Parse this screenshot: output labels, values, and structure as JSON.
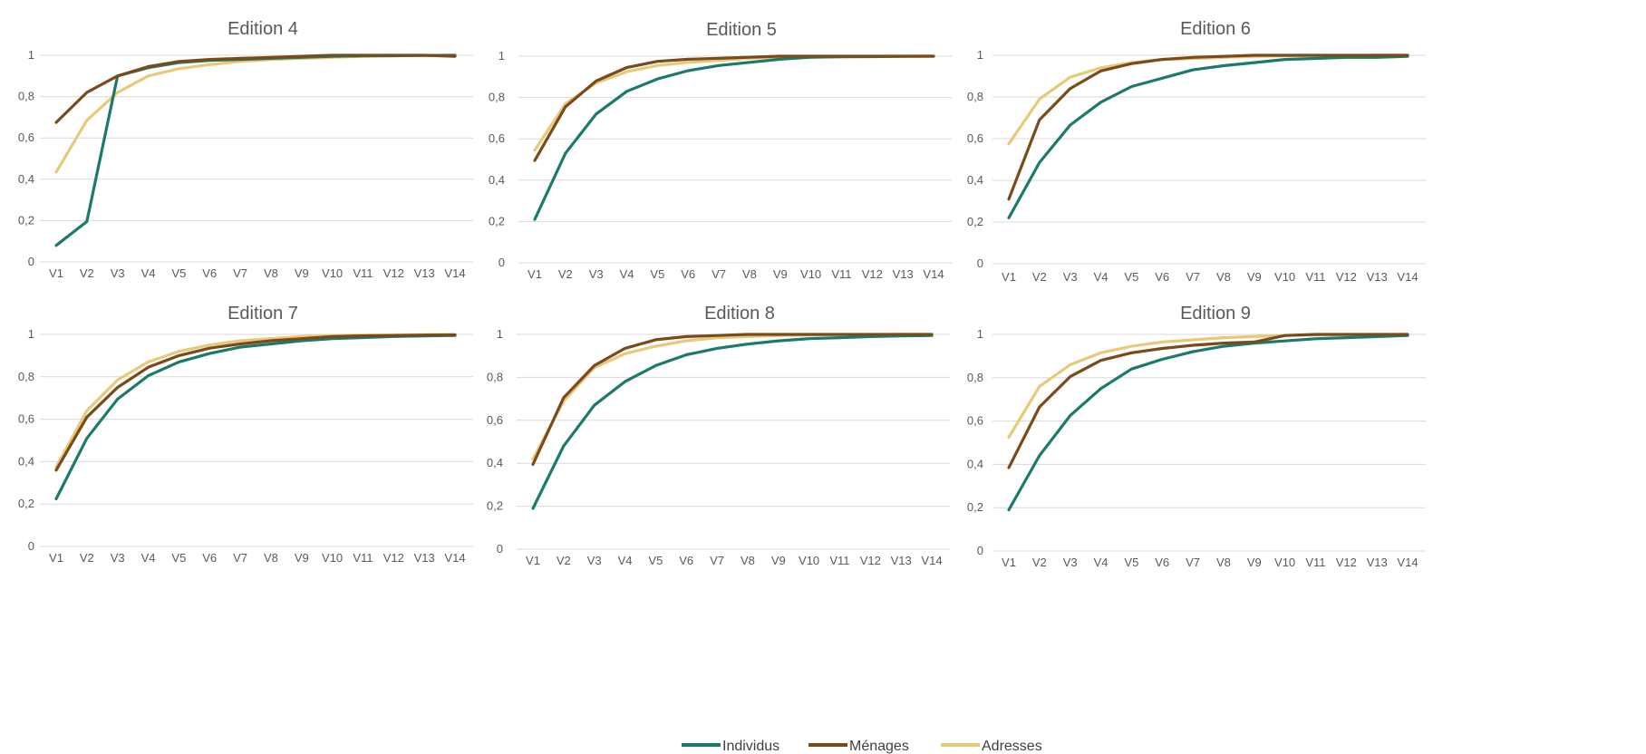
{
  "chart_data": [
    {
      "type": "line",
      "title": "Edition 4",
      "categories": [
        "V1",
        "V2",
        "V3",
        "V4",
        "V5",
        "V6",
        "V7",
        "V8",
        "V9",
        "V10",
        "V11",
        "V12",
        "V13",
        "V14"
      ],
      "yticks": [
        "0",
        "0,2",
        "0,4",
        "0,6",
        "0,8",
        "1"
      ],
      "ylim": [
        0,
        1
      ],
      "grid": true,
      "series": [
        {
          "name": "Individus",
          "values": [
            0.08,
            0.195,
            0.9,
            0.94,
            0.965,
            0.975,
            0.98,
            0.985,
            0.99,
            0.995,
            0.997,
            0.998,
            0.999,
            1.0
          ]
        },
        {
          "name": "Ménages",
          "values": [
            0.675,
            0.82,
            0.9,
            0.945,
            0.97,
            0.98,
            0.985,
            0.99,
            0.995,
            1.0,
            1.0,
            1.0,
            1.0,
            0.995
          ]
        },
        {
          "name": "Adresses",
          "values": [
            0.435,
            0.685,
            0.82,
            0.9,
            0.935,
            0.955,
            0.97,
            0.98,
            0.985,
            0.99,
            0.995,
            0.998,
            0.999,
            1.0
          ]
        }
      ]
    },
    {
      "type": "line",
      "title": "Edition 5",
      "categories": [
        "V1",
        "V2",
        "V3",
        "V4",
        "V5",
        "V6",
        "V7",
        "V8",
        "V9",
        "V10",
        "V11",
        "V12",
        "V13",
        "V14"
      ],
      "yticks": [
        "0",
        "0,2",
        "0,4",
        "0,6",
        "0,8",
        "1"
      ],
      "ylim": [
        0,
        1
      ],
      "grid": true,
      "series": [
        {
          "name": "Individus",
          "values": [
            0.21,
            0.53,
            0.72,
            0.83,
            0.89,
            0.93,
            0.955,
            0.97,
            0.985,
            0.995,
            0.997,
            0.998,
            0.999,
            1.0
          ]
        },
        {
          "name": "Ménages",
          "values": [
            0.495,
            0.755,
            0.88,
            0.945,
            0.975,
            0.985,
            0.99,
            0.995,
            1.0,
            1.0,
            1.0,
            1.0,
            1.0,
            1.0
          ]
        },
        {
          "name": "Adresses",
          "values": [
            0.545,
            0.77,
            0.87,
            0.925,
            0.955,
            0.97,
            0.98,
            0.99,
            0.995,
            0.997,
            0.998,
            0.999,
            1.0,
            1.0
          ]
        }
      ]
    },
    {
      "type": "line",
      "title": "Edition 6",
      "categories": [
        "V1",
        "V2",
        "V3",
        "V4",
        "V5",
        "V6",
        "V7",
        "V8",
        "V9",
        "V10",
        "V11",
        "V12",
        "V13",
        "V14"
      ],
      "yticks": [
        "0",
        "0,2",
        "0,4",
        "0,6",
        "0,8",
        "1"
      ],
      "ylim": [
        0,
        1
      ],
      "grid": true,
      "series": [
        {
          "name": "Individus",
          "values": [
            0.22,
            0.485,
            0.665,
            0.775,
            0.85,
            0.89,
            0.93,
            0.95,
            0.965,
            0.98,
            0.985,
            0.99,
            0.99,
            0.995
          ]
        },
        {
          "name": "Ménages",
          "values": [
            0.31,
            0.69,
            0.84,
            0.925,
            0.96,
            0.98,
            0.99,
            0.995,
            1.0,
            1.0,
            1.0,
            1.0,
            1.0,
            1.0
          ]
        },
        {
          "name": "Adresses",
          "values": [
            0.575,
            0.79,
            0.895,
            0.94,
            0.965,
            0.98,
            0.985,
            0.99,
            0.995,
            0.997,
            0.998,
            0.999,
            1.0,
            1.0
          ]
        }
      ]
    },
    {
      "type": "line",
      "title": "Edition 7",
      "categories": [
        "V1",
        "V2",
        "V3",
        "V4",
        "V5",
        "V6",
        "V7",
        "V8",
        "V9",
        "V10",
        "V11",
        "V12",
        "V13",
        "V14"
      ],
      "yticks": [
        "0",
        "0,2",
        "0,4",
        "0,6",
        "0,8",
        "1"
      ],
      "ylim": [
        0,
        1
      ],
      "grid": true,
      "series": [
        {
          "name": "Individus",
          "values": [
            0.225,
            0.51,
            0.695,
            0.805,
            0.87,
            0.91,
            0.94,
            0.955,
            0.97,
            0.98,
            0.985,
            0.99,
            0.993,
            0.995
          ]
        },
        {
          "name": "Ménages",
          "values": [
            0.36,
            0.61,
            0.75,
            0.845,
            0.9,
            0.935,
            0.955,
            0.97,
            0.98,
            0.99,
            0.993,
            0.995,
            0.997,
            0.998
          ]
        },
        {
          "name": "Adresses",
          "values": [
            0.375,
            0.64,
            0.785,
            0.87,
            0.92,
            0.95,
            0.97,
            0.98,
            0.99,
            0.995,
            0.997,
            0.998,
            0.999,
            1.0
          ]
        }
      ]
    },
    {
      "type": "line",
      "title": "Edition 8",
      "categories": [
        "V1",
        "V2",
        "V3",
        "V4",
        "V5",
        "V6",
        "V7",
        "V8",
        "V9",
        "V10",
        "V11",
        "V12",
        "V13",
        "V14"
      ],
      "yticks": [
        "0",
        "0,2",
        "0,4",
        "0,6",
        "0,8",
        "1"
      ],
      "ylim": [
        0,
        1
      ],
      "grid": true,
      "series": [
        {
          "name": "Individus",
          "values": [
            0.19,
            0.48,
            0.67,
            0.78,
            0.855,
            0.905,
            0.935,
            0.955,
            0.97,
            0.98,
            0.985,
            0.99,
            0.993,
            0.995
          ]
        },
        {
          "name": "Ménages",
          "values": [
            0.395,
            0.705,
            0.855,
            0.935,
            0.975,
            0.99,
            0.995,
            1.0,
            1.0,
            1.0,
            1.0,
            1.0,
            1.0,
            1.0
          ]
        },
        {
          "name": "Adresses",
          "values": [
            0.42,
            0.69,
            0.845,
            0.91,
            0.945,
            0.97,
            0.985,
            0.99,
            0.995,
            0.997,
            0.998,
            0.999,
            1.0,
            1.0
          ]
        }
      ]
    },
    {
      "type": "line",
      "title": "Edition 9",
      "categories": [
        "V1",
        "V2",
        "V3",
        "V4",
        "V5",
        "V6",
        "V7",
        "V8",
        "V9",
        "V10",
        "V11",
        "V12",
        "V13",
        "V14"
      ],
      "yticks": [
        "0",
        "0,2",
        "0,4",
        "0,6",
        "0,8",
        "1"
      ],
      "ylim": [
        0,
        1
      ],
      "grid": true,
      "series": [
        {
          "name": "Individus",
          "values": [
            0.19,
            0.44,
            0.625,
            0.75,
            0.84,
            0.885,
            0.92,
            0.945,
            0.96,
            0.97,
            0.98,
            0.985,
            0.99,
            0.995
          ]
        },
        {
          "name": "Ménages",
          "values": [
            0.385,
            0.665,
            0.805,
            0.88,
            0.915,
            0.935,
            0.95,
            0.96,
            0.965,
            0.995,
            1.0,
            1.0,
            1.0,
            1.0
          ]
        },
        {
          "name": "Adresses",
          "values": [
            0.525,
            0.76,
            0.86,
            0.915,
            0.945,
            0.965,
            0.975,
            0.985,
            0.99,
            0.995,
            0.997,
            0.998,
            0.999,
            1.0
          ]
        }
      ]
    }
  ],
  "legend": {
    "position": "bottom-center",
    "items": [
      {
        "label": "Individus",
        "color": "#1a7a6b"
      },
      {
        "label": "Ménages",
        "color": "#7b4a1a"
      },
      {
        "label": "Adresses",
        "color": "#e8c97a"
      }
    ]
  },
  "colors": {
    "Individus": "#1a7a6b",
    "Ménages": "#7b4a1a",
    "Adresses": "#e8c97a"
  }
}
